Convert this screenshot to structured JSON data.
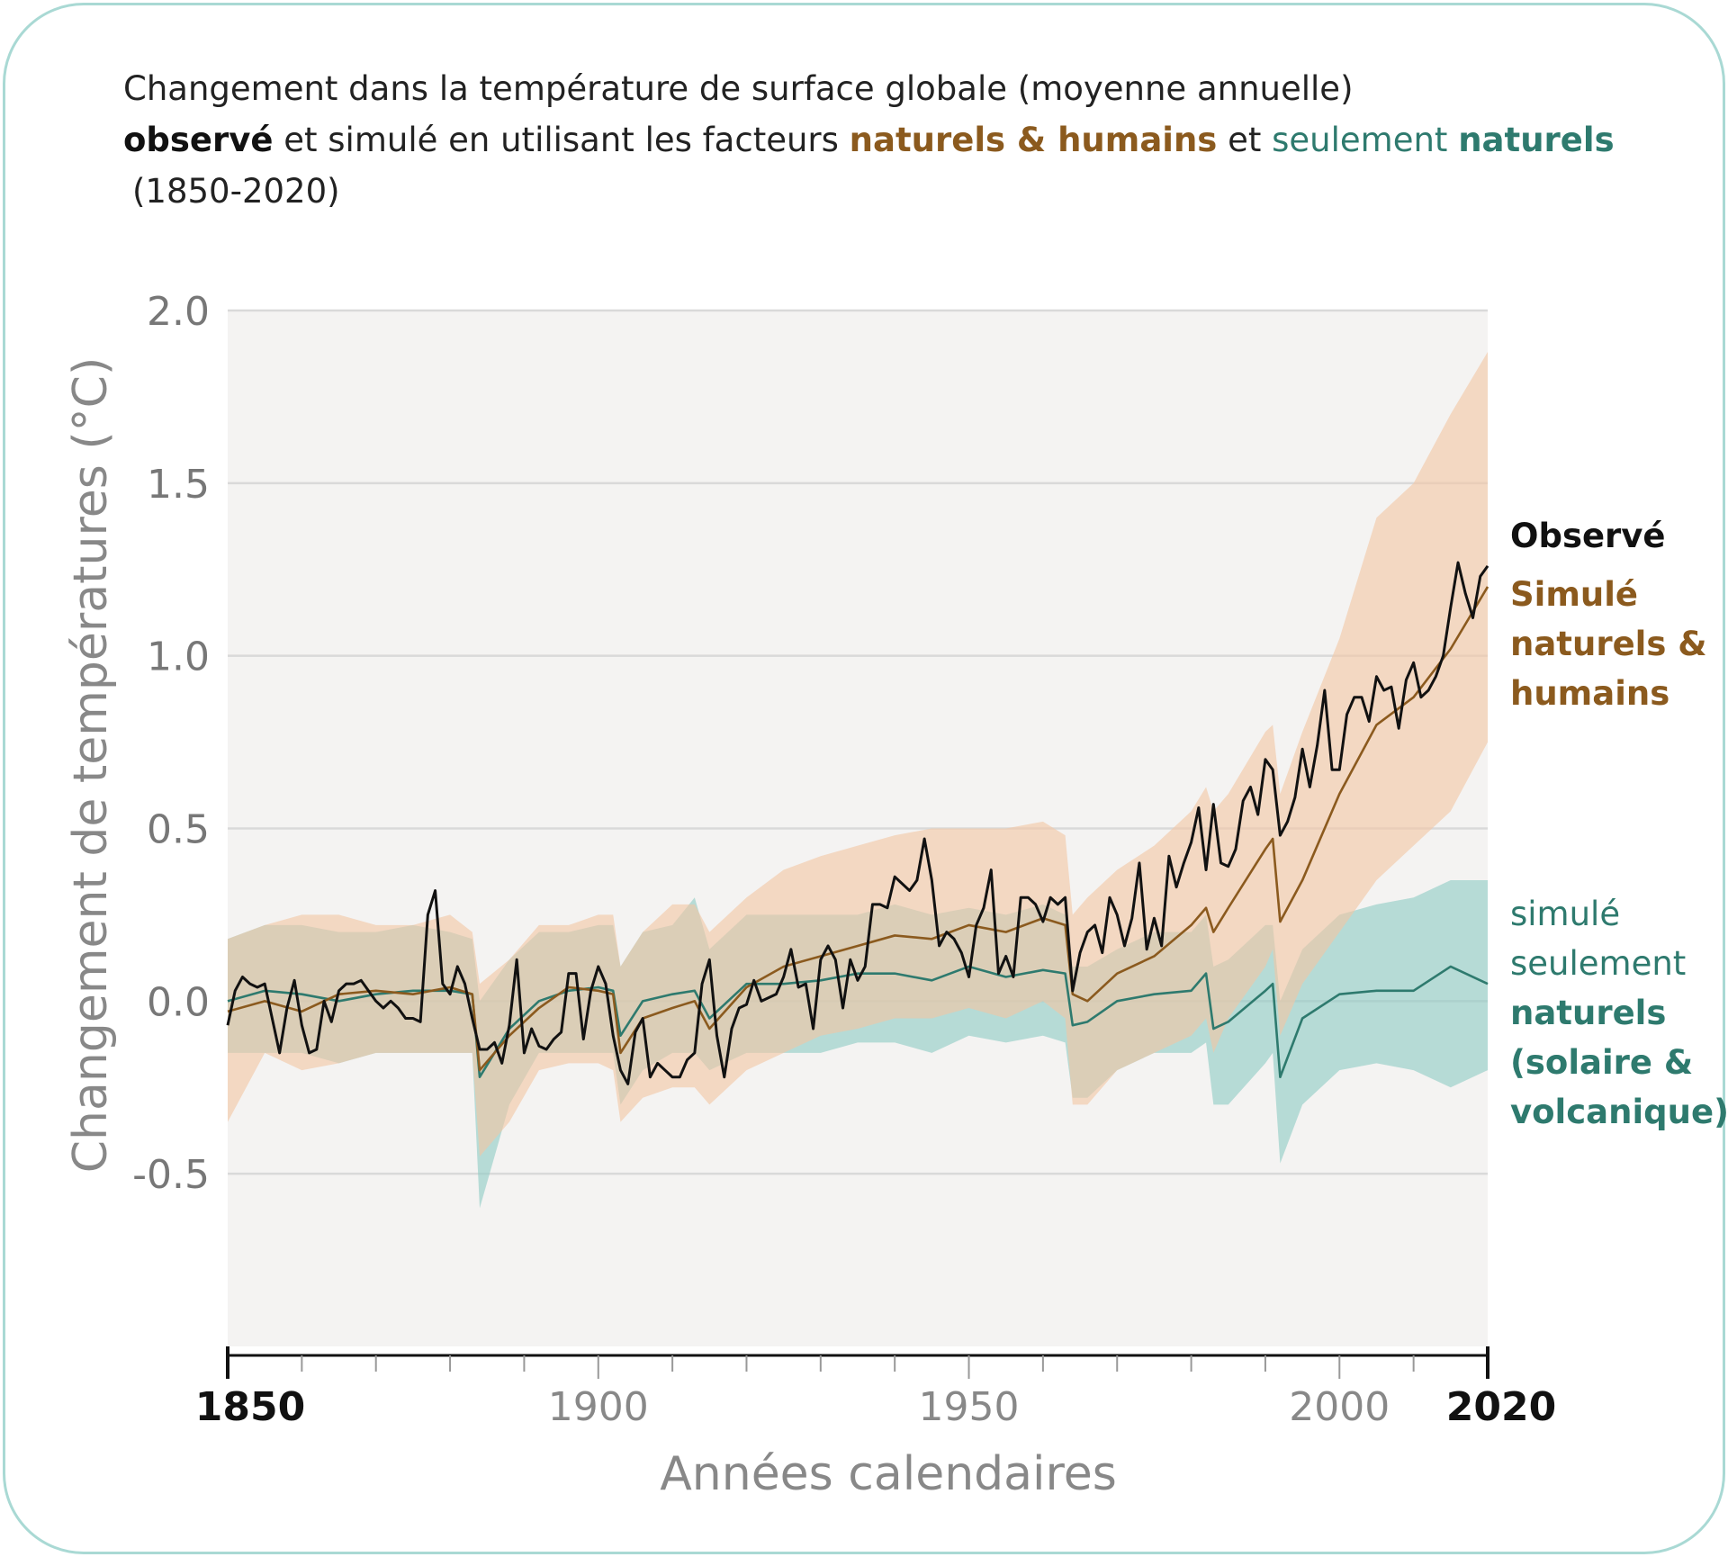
{
  "chart_data": {
    "type": "line",
    "title": [
      [
        "Changement dans la température de surface globale (moyenne annuelle)"
      ],
      [
        "observé",
        " et simulé en utilisant les facteurs ",
        "naturels & humains",
        " et ",
        "seulement ",
        "naturels"
      ],
      [
        "(1850-2020)"
      ]
    ],
    "xlabel": "Années calendaires",
    "ylabel": "Changement de températures (°C)",
    "xlim": [
      1850,
      2020
    ],
    "xticks": [
      1850,
      1900,
      1950,
      2000,
      2020
    ],
    "xminorticks": [
      1860,
      1870,
      1880,
      1890,
      1910,
      1920,
      1930,
      1940,
      1960,
      1970,
      1980,
      1990,
      2010
    ],
    "ylim": [
      -1.0,
      2.0
    ],
    "yticks": [
      -0.5,
      {
        "value": 0,
        "label": "0.0"
      },
      0.5,
      {
        "value": 1,
        "label": "1.0"
      },
      1.5,
      {
        "value": 2,
        "label": "2.0"
      }
    ],
    "grid": true,
    "series": [
      {
        "name": [
          "Observé"
        ],
        "color": "#111111",
        "x": [
          1850,
          1851,
          1852,
          1853,
          1854,
          1855,
          1856,
          1857,
          1858,
          1859,
          1860,
          1861,
          1862,
          1863,
          1864,
          1865,
          1866,
          1867,
          1868,
          1869,
          1870,
          1871,
          1872,
          1873,
          1874,
          1875,
          1876,
          1877,
          1878,
          1879,
          1880,
          1881,
          1882,
          1883,
          1884,
          1885,
          1886,
          1887,
          1888,
          1889,
          1890,
          1891,
          1892,
          1893,
          1894,
          1895,
          1896,
          1897,
          1898,
          1899,
          1900,
          1901,
          1902,
          1903,
          1904,
          1905,
          1906,
          1907,
          1908,
          1909,
          1910,
          1911,
          1912,
          1913,
          1914,
          1915,
          1916,
          1917,
          1918,
          1919,
          1920,
          1921,
          1922,
          1923,
          1924,
          1925,
          1926,
          1927,
          1928,
          1929,
          1930,
          1931,
          1932,
          1933,
          1934,
          1935,
          1936,
          1937,
          1938,
          1939,
          1940,
          1941,
          1942,
          1943,
          1944,
          1945,
          1946,
          1947,
          1948,
          1949,
          1950,
          1951,
          1952,
          1953,
          1954,
          1955,
          1956,
          1957,
          1958,
          1959,
          1960,
          1961,
          1962,
          1963,
          1964,
          1965,
          1966,
          1967,
          1968,
          1969,
          1970,
          1971,
          1972,
          1973,
          1974,
          1975,
          1976,
          1977,
          1978,
          1979,
          1980,
          1981,
          1982,
          1983,
          1984,
          1985,
          1986,
          1987,
          1988,
          1989,
          1990,
          1991,
          1992,
          1993,
          1994,
          1995,
          1996,
          1997,
          1998,
          1999,
          2000,
          2001,
          2002,
          2003,
          2004,
          2005,
          2006,
          2007,
          2008,
          2009,
          2010,
          2011,
          2012,
          2013,
          2014,
          2015,
          2016,
          2017,
          2018,
          2019,
          2020
        ],
        "values": [
          -0.07,
          0.03,
          0.07,
          0.05,
          0.04,
          0.05,
          -0.05,
          -0.15,
          -0.02,
          0.06,
          -0.07,
          -0.15,
          -0.14,
          0.0,
          -0.06,
          0.03,
          0.05,
          0.05,
          0.06,
          0.03,
          0.0,
          -0.02,
          0.0,
          -0.02,
          -0.05,
          -0.05,
          -0.06,
          0.25,
          0.32,
          0.05,
          0.02,
          0.1,
          0.05,
          -0.05,
          -0.14,
          -0.14,
          -0.12,
          -0.18,
          -0.07,
          0.12,
          -0.15,
          -0.08,
          -0.13,
          -0.14,
          -0.11,
          -0.09,
          0.08,
          0.08,
          -0.11,
          0.03,
          0.1,
          0.05,
          -0.1,
          -0.2,
          -0.24,
          -0.09,
          -0.05,
          -0.22,
          -0.18,
          -0.2,
          -0.22,
          -0.22,
          -0.17,
          -0.15,
          0.05,
          0.12,
          -0.1,
          -0.22,
          -0.08,
          -0.02,
          -0.01,
          0.06,
          0.0,
          0.01,
          0.02,
          0.07,
          0.15,
          0.04,
          0.05,
          -0.08,
          0.12,
          0.16,
          0.12,
          -0.02,
          0.12,
          0.06,
          0.1,
          0.28,
          0.28,
          0.27,
          0.36,
          0.34,
          0.32,
          0.35,
          0.47,
          0.35,
          0.16,
          0.2,
          0.18,
          0.14,
          0.07,
          0.22,
          0.27,
          0.38,
          0.08,
          0.13,
          0.07,
          0.3,
          0.3,
          0.28,
          0.23,
          0.3,
          0.28,
          0.3,
          0.03,
          0.14,
          0.2,
          0.22,
          0.14,
          0.3,
          0.25,
          0.16,
          0.24,
          0.4,
          0.15,
          0.24,
          0.16,
          0.42,
          0.33,
          0.4,
          0.46,
          0.56,
          0.38,
          0.57,
          0.4,
          0.39,
          0.44,
          0.58,
          0.62,
          0.54,
          0.7,
          0.67,
          0.48,
          0.52,
          0.59,
          0.73,
          0.62,
          0.74,
          0.9,
          0.67,
          0.67,
          0.83,
          0.88,
          0.88,
          0.81,
          0.94,
          0.9,
          0.91,
          0.79,
          0.93,
          0.98,
          0.88,
          0.9,
          0.94,
          1.0,
          1.14,
          1.27,
          1.18,
          1.11,
          1.23,
          1.26
        ]
      },
      {
        "name": [
          "Simulé",
          "naturels &",
          "humains"
        ],
        "color": "#8b5a1e",
        "band_color": "#f2c6a4",
        "x": [
          1850,
          1855,
          1860,
          1865,
          1870,
          1875,
          1880,
          1883,
          1884,
          1888,
          1892,
          1896,
          1900,
          1902,
          1903,
          1906,
          1910,
          1913,
          1915,
          1920,
          1925,
          1930,
          1935,
          1940,
          1945,
          1950,
          1955,
          1960,
          1963,
          1964,
          1966,
          1970,
          1975,
          1980,
          1982,
          1983,
          1985,
          1990,
          1991,
          1992,
          1995,
          2000,
          2005,
          2010,
          2015,
          2020
        ],
        "values": [
          -0.03,
          0.0,
          -0.03,
          0.02,
          0.03,
          0.02,
          0.04,
          0.02,
          -0.2,
          -0.1,
          -0.02,
          0.04,
          0.03,
          0.02,
          -0.15,
          -0.05,
          -0.02,
          0.0,
          -0.08,
          0.04,
          0.1,
          0.13,
          0.16,
          0.19,
          0.18,
          0.22,
          0.2,
          0.24,
          0.22,
          0.02,
          0.0,
          0.08,
          0.13,
          0.22,
          0.27,
          0.2,
          0.27,
          0.44,
          0.47,
          0.23,
          0.35,
          0.6,
          0.8,
          0.88,
          1.02,
          1.2
        ],
        "upper": [
          0.18,
          0.22,
          0.25,
          0.25,
          0.22,
          0.22,
          0.25,
          0.2,
          0.05,
          0.12,
          0.22,
          0.22,
          0.25,
          0.25,
          0.1,
          0.2,
          0.28,
          0.28,
          0.2,
          0.3,
          0.38,
          0.42,
          0.45,
          0.48,
          0.5,
          0.5,
          0.5,
          0.52,
          0.48,
          0.25,
          0.3,
          0.38,
          0.45,
          0.55,
          0.62,
          0.55,
          0.6,
          0.78,
          0.8,
          0.6,
          0.78,
          1.05,
          1.4,
          1.5,
          1.7,
          1.88
        ],
        "lower": [
          -0.35,
          -0.15,
          -0.2,
          -0.18,
          -0.15,
          -0.15,
          -0.15,
          -0.15,
          -0.45,
          -0.35,
          -0.2,
          -0.18,
          -0.18,
          -0.2,
          -0.35,
          -0.28,
          -0.25,
          -0.25,
          -0.3,
          -0.2,
          -0.15,
          -0.1,
          -0.08,
          -0.05,
          -0.05,
          -0.02,
          -0.05,
          0.0,
          -0.05,
          -0.3,
          -0.3,
          -0.2,
          -0.15,
          -0.1,
          -0.05,
          -0.15,
          -0.05,
          0.1,
          0.15,
          -0.1,
          0.05,
          0.2,
          0.35,
          0.45,
          0.55,
          0.75
        ]
      },
      {
        "name": [
          "simulé",
          "seulement",
          "naturels",
          "(solaire &",
          "volcanique)"
        ],
        "color": "#2e7a6e",
        "band_color": "#8fcbc5",
        "x": [
          1850,
          1855,
          1860,
          1865,
          1870,
          1875,
          1880,
          1883,
          1884,
          1888,
          1892,
          1896,
          1900,
          1902,
          1903,
          1906,
          1910,
          1913,
          1915,
          1920,
          1925,
          1930,
          1935,
          1940,
          1945,
          1950,
          1955,
          1960,
          1963,
          1964,
          1966,
          1970,
          1975,
          1980,
          1982,
          1983,
          1985,
          1990,
          1991,
          1992,
          1995,
          2000,
          2005,
          2010,
          2015,
          2020
        ],
        "values": [
          0.0,
          0.03,
          0.02,
          0.0,
          0.02,
          0.03,
          0.03,
          0.02,
          -0.22,
          -0.08,
          0.0,
          0.03,
          0.04,
          0.03,
          -0.1,
          0.0,
          0.02,
          0.03,
          -0.05,
          0.05,
          0.05,
          0.06,
          0.08,
          0.08,
          0.06,
          0.1,
          0.07,
          0.09,
          0.08,
          -0.07,
          -0.06,
          0.0,
          0.02,
          0.03,
          0.08,
          -0.08,
          -0.06,
          0.03,
          0.05,
          -0.22,
          -0.05,
          0.02,
          0.03,
          0.03,
          0.1,
          0.05
        ],
        "upper": [
          0.18,
          0.22,
          0.22,
          0.2,
          0.2,
          0.22,
          0.2,
          0.18,
          0.0,
          0.12,
          0.2,
          0.2,
          0.22,
          0.22,
          0.1,
          0.2,
          0.22,
          0.3,
          0.15,
          0.25,
          0.25,
          0.25,
          0.25,
          0.28,
          0.25,
          0.27,
          0.25,
          0.28,
          0.25,
          0.1,
          0.1,
          0.15,
          0.2,
          0.2,
          0.25,
          0.1,
          0.12,
          0.22,
          0.22,
          0.0,
          0.15,
          0.25,
          0.28,
          0.3,
          0.35,
          0.35
        ],
        "lower": [
          -0.15,
          -0.15,
          -0.15,
          -0.18,
          -0.15,
          -0.15,
          -0.15,
          -0.15,
          -0.6,
          -0.3,
          -0.15,
          -0.15,
          -0.15,
          -0.15,
          -0.3,
          -0.2,
          -0.15,
          -0.15,
          -0.2,
          -0.15,
          -0.15,
          -0.15,
          -0.12,
          -0.12,
          -0.15,
          -0.1,
          -0.12,
          -0.1,
          -0.12,
          -0.28,
          -0.28,
          -0.2,
          -0.15,
          -0.15,
          -0.12,
          -0.3,
          -0.3,
          -0.18,
          -0.15,
          -0.47,
          -0.3,
          -0.2,
          -0.18,
          -0.2,
          -0.25,
          -0.2
        ]
      }
    ]
  }
}
